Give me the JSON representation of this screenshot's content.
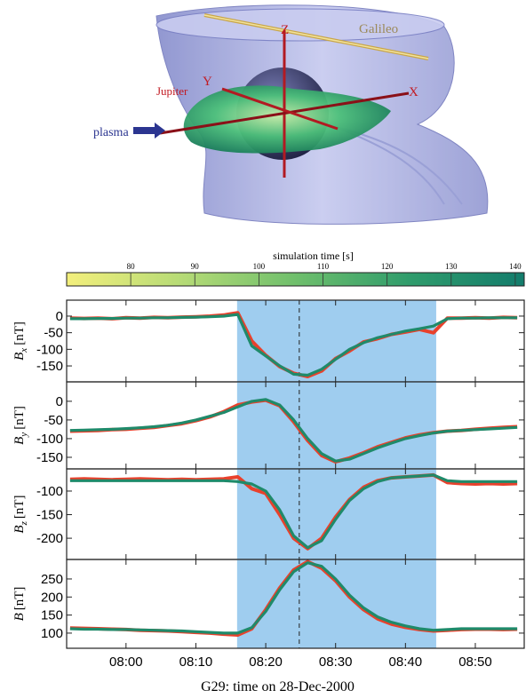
{
  "render": {
    "labels": {
      "galileo": "Galileo",
      "z": "Z",
      "y": "Y",
      "x": "X",
      "jupiter": "Jupiter",
      "plasma": "plasma"
    }
  },
  "chart_data": [
    {
      "type": "colorbar",
      "title": "simulation time [s]",
      "xlim": [
        70,
        141.4
      ],
      "xticks": [
        80,
        90,
        100,
        110,
        120,
        130,
        140
      ],
      "colormap": [
        "#f3ef7c",
        "#b6db76",
        "#6fbf6c",
        "#2f9c6c",
        "#137c6c"
      ]
    },
    {
      "type": "line",
      "ylabel": {
        "symbol": "B",
        "sub": "x",
        "unit": "[nT]"
      },
      "xlim": [
        471.5,
        537
      ],
      "ylim": [
        -198,
        48
      ],
      "yticks": [
        -150,
        -100,
        -50,
        0
      ],
      "shade": [
        495.9,
        524.4
      ],
      "shade_color": "#9fcdef",
      "marker": 504.8,
      "x": [
        472,
        474,
        476,
        478,
        480,
        482,
        484,
        486,
        488,
        490,
        492,
        494,
        496,
        498,
        500,
        502,
        504,
        506,
        508,
        510,
        512,
        514,
        516,
        518,
        520,
        522,
        524,
        526,
        528,
        530,
        532,
        534,
        536
      ],
      "series": [
        {
          "color": "#e8412c",
          "values": [
            -6,
            -7,
            -6,
            -8,
            -5,
            -6,
            -4,
            -5,
            -3,
            -2,
            0,
            3,
            10,
            -75,
            -118,
            -152,
            -172,
            -182,
            -165,
            -128,
            -105,
            -78,
            -68,
            -55,
            -48,
            -40,
            -50,
            -6,
            -6,
            -5,
            -6,
            -4,
            -5
          ]
        },
        {
          "color": "#1f8a6a",
          "values": [
            -8,
            -8,
            -7,
            -7,
            -6,
            -6,
            -5,
            -5,
            -4,
            -3,
            -2,
            0,
            5,
            -90,
            -120,
            -150,
            -175,
            -178,
            -160,
            -130,
            -100,
            -80,
            -65,
            -55,
            -45,
            -38,
            -30,
            -8,
            -6,
            -6,
            -5,
            -5,
            -5
          ]
        }
      ]
    },
    {
      "type": "line",
      "ylabel": {
        "symbol": "B",
        "sub": "y",
        "unit": "[nT]"
      },
      "xlim": [
        471.5,
        537
      ],
      "ylim": [
        -181,
        52
      ],
      "yticks": [
        -150,
        -100,
        -50,
        0
      ],
      "shade": [
        495.9,
        524.4
      ],
      "shade_color": "#9fcdef",
      "marker": 504.8,
      "x": [
        472,
        474,
        476,
        478,
        480,
        482,
        484,
        486,
        488,
        490,
        492,
        494,
        496,
        498,
        500,
        502,
        504,
        506,
        508,
        510,
        512,
        514,
        516,
        518,
        520,
        522,
        524,
        526,
        528,
        530,
        532,
        534,
        536
      ],
      "series": [
        {
          "color": "#e8412c",
          "values": [
            -80,
            -79,
            -78,
            -76,
            -75,
            -72,
            -70,
            -65,
            -60,
            -52,
            -42,
            -28,
            -10,
            -2,
            3,
            -12,
            -55,
            -105,
            -145,
            -162,
            -152,
            -138,
            -122,
            -110,
            -98,
            -90,
            -84,
            -80,
            -78,
            -75,
            -72,
            -70,
            -68
          ]
        },
        {
          "color": "#1f8a6a",
          "values": [
            -78,
            -77,
            -76,
            -75,
            -73,
            -71,
            -68,
            -64,
            -58,
            -50,
            -40,
            -30,
            -15,
            0,
            5,
            -10,
            -50,
            -100,
            -140,
            -160,
            -155,
            -140,
            -125,
            -112,
            -100,
            -92,
            -85,
            -80,
            -78,
            -76,
            -74,
            -72,
            -70
          ]
        }
      ]
    },
    {
      "type": "line",
      "ylabel": {
        "symbol": "B",
        "sub": "z",
        "unit": "[nT]"
      },
      "xlim": [
        471.5,
        537
      ],
      "ylim": [
        -245,
        -53
      ],
      "yticks": [
        -200,
        -150,
        -100
      ],
      "shade": [
        495.9,
        524.4
      ],
      "shade_color": "#9fcdef",
      "marker": 504.8,
      "x": [
        472,
        474,
        476,
        478,
        480,
        482,
        484,
        486,
        488,
        490,
        492,
        494,
        496,
        498,
        500,
        502,
        504,
        506,
        508,
        510,
        512,
        514,
        516,
        518,
        520,
        522,
        524,
        526,
        528,
        530,
        532,
        534,
        536
      ],
      "series": [
        {
          "color": "#e8412c",
          "values": [
            -75,
            -74,
            -75,
            -76,
            -75,
            -74,
            -75,
            -76,
            -75,
            -76,
            -75,
            -74,
            -70,
            -95,
            -105,
            -150,
            -200,
            -222,
            -200,
            -155,
            -118,
            -92,
            -78,
            -72,
            -70,
            -68,
            -66,
            -82,
            -84,
            -85,
            -84,
            -85,
            -84
          ]
        },
        {
          "color": "#1f8a6a",
          "values": [
            -78,
            -78,
            -78,
            -78,
            -78,
            -78,
            -78,
            -78,
            -78,
            -78,
            -78,
            -78,
            -80,
            -85,
            -100,
            -140,
            -195,
            -220,
            -205,
            -160,
            -120,
            -95,
            -80,
            -72,
            -70,
            -68,
            -66,
            -78,
            -80,
            -80,
            -80,
            -80,
            -80
          ]
        }
      ]
    },
    {
      "type": "line",
      "ylabel": {
        "symbol": "B",
        "sub": "",
        "unit": "[nT]"
      },
      "xlabel": "G29: time on 28-Dec-2000",
      "xlim": [
        471.5,
        537
      ],
      "ylim": [
        58,
        304
      ],
      "yticks": [
        100,
        150,
        200,
        250
      ],
      "xticks": [
        {
          "value": 480,
          "label": "08:00"
        },
        {
          "value": 490,
          "label": "08:10"
        },
        {
          "value": 500,
          "label": "08:20"
        },
        {
          "value": 510,
          "label": "08:30"
        },
        {
          "value": 520,
          "label": "08:40"
        },
        {
          "value": 530,
          "label": "08:50"
        }
      ],
      "shade": [
        495.9,
        524.4
      ],
      "shade_color": "#9fcdef",
      "marker": 504.8,
      "x": [
        472,
        474,
        476,
        478,
        480,
        482,
        484,
        486,
        488,
        490,
        492,
        494,
        496,
        498,
        500,
        502,
        504,
        506,
        508,
        510,
        512,
        514,
        516,
        518,
        520,
        522,
        524,
        526,
        528,
        530,
        532,
        534,
        536
      ],
      "series": [
        {
          "color": "#e8412c",
          "values": [
            114,
            113,
            112,
            111,
            110,
            108,
            107,
            106,
            104,
            102,
            100,
            97,
            95,
            112,
            165,
            225,
            275,
            298,
            280,
            245,
            200,
            165,
            140,
            125,
            116,
            110,
            106,
            108,
            110,
            111,
            111,
            110,
            111
          ]
        },
        {
          "color": "#1f8a6a",
          "values": [
            112,
            111,
            111,
            110,
            110,
            109,
            108,
            107,
            106,
            104,
            102,
            100,
            100,
            115,
            160,
            220,
            270,
            295,
            285,
            250,
            205,
            170,
            145,
            130,
            120,
            112,
            108,
            110,
            112,
            112,
            112,
            112,
            112
          ]
        }
      ]
    }
  ]
}
